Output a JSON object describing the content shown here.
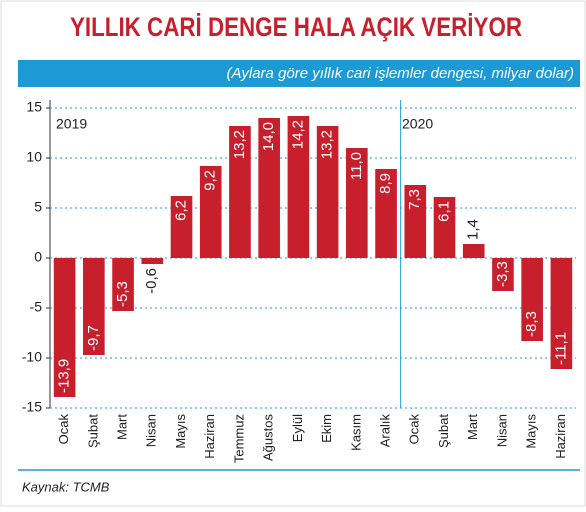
{
  "chart_data": {
    "type": "bar",
    "title": "YILLIK CARİ DENGE HALA AÇIK VERİYOR",
    "subtitle": "(Aylara göre yıllık cari işlemler dengesi, milyar dolar)",
    "annotations": [
      "2019",
      "2020"
    ],
    "source": "Kaynak: TCMB",
    "categories": [
      "Ocak",
      "Şubat",
      "Mart",
      "Nisan",
      "Mayıs",
      "Haziran",
      "Temmuz",
      "Ağustos",
      "Eylül",
      "Ekim",
      "Kasım",
      "Aralık",
      "Ocak",
      "Şubat",
      "Mart",
      "Nisan",
      "Mayıs",
      "Haziran"
    ],
    "values": [
      -13.9,
      -9.7,
      -5.3,
      -0.6,
      6.2,
      9.2,
      13.2,
      14.0,
      14.2,
      13.2,
      11.0,
      8.9,
      7.3,
      6.1,
      1.4,
      -3.3,
      -8.3,
      -11.1
    ],
    "value_labels": [
      "-13,9",
      "-9,7",
      "-5,3",
      "-0,6",
      "6,2",
      "9,2",
      "13,2",
      "14,0",
      "14,2",
      "13,2",
      "11,0",
      "8,9",
      "7,3",
      "6,1",
      "1,4",
      "-3,3",
      "-8,3",
      "-11,1"
    ],
    "color": "#c81f2d",
    "ylim": [
      -15,
      15
    ],
    "yticks": [
      15,
      10,
      5,
      0,
      -5,
      -10,
      -15
    ],
    "grid": true
  }
}
